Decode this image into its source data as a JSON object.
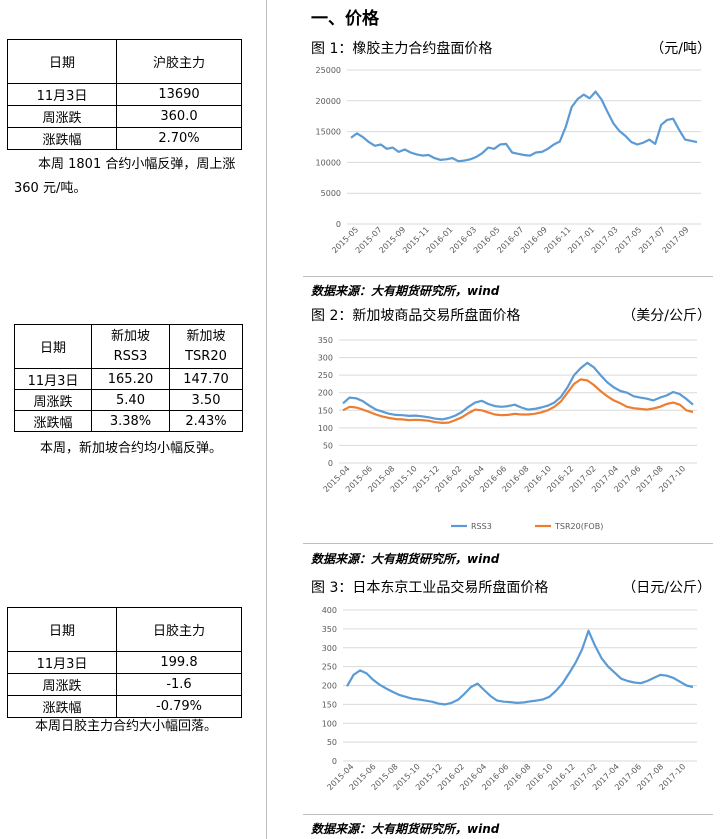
{
  "left": {
    "table1": {
      "rows": [
        [
          "日期",
          "沪胶主力"
        ],
        [
          "11月3日",
          "13690"
        ],
        [
          "周涨跌",
          "360.0"
        ],
        [
          "涨跌幅",
          "2.70%"
        ]
      ]
    },
    "note1": {
      "line1": "本周 1801 合约小幅反弹，周上涨",
      "line2": "360 元/吨。"
    },
    "table2": {
      "header": {
        "c0": "日期",
        "c1a": "新加坡",
        "c1b": "RSS3",
        "c2a": "新加坡",
        "c2b": "TSR20"
      },
      "rows": [
        [
          "11月3日",
          "165.20",
          "147.70"
        ],
        [
          "周涨跌",
          "5.40",
          "3.50"
        ],
        [
          "涨跌幅",
          "3.38%",
          "2.43%"
        ]
      ]
    },
    "note2": "本周，新加坡合约均小幅反弹。",
    "table3": {
      "rows": [
        [
          "日期",
          "日胶主力"
        ],
        [
          "11月3日",
          "199.8"
        ],
        [
          "周涨跌",
          "-1.6"
        ],
        [
          "涨跌幅",
          "-0.79%"
        ]
      ]
    },
    "note3": "本周日胶主力合约大小幅回落。"
  },
  "right": {
    "section_title": "一、价格",
    "source": "数据来源：大有期货研究所，wind",
    "fig1": {
      "title": "图 1：橡胶主力合约盘面价格",
      "unit": "（元/吨）"
    },
    "fig2": {
      "title": "图 2：新加坡商品交易所盘面价格",
      "unit": "（美分/公斤）"
    },
    "fig3": {
      "title": "图 3：日本东京工业品交易所盘面价格",
      "unit": "（日元/公斤）"
    }
  },
  "colors": {
    "series1": "#5b9bd5",
    "series2": "#ed7d31",
    "grid": "#d9d9d9"
  },
  "chart_data": [
    {
      "type": "line",
      "title": "",
      "ylim": [
        0,
        25000
      ],
      "yticks": [
        "0",
        "5000",
        "10000",
        "15000",
        "20000",
        "25000"
      ],
      "xticks": [
        "2015-05",
        "2015-07",
        "2015-09",
        "2015-11",
        "2016-01",
        "2016-03",
        "2016-05",
        "2016-07",
        "2016-09",
        "2016-11",
        "2017-01",
        "2017-03",
        "2017-05",
        "2017-07",
        "2017-09"
      ],
      "grid": "horizontal",
      "legend": "none",
      "series": [
        {
          "values": [
            14000,
            14700,
            14100,
            13300,
            12700,
            12900,
            12200,
            12400,
            11700,
            12100,
            11600,
            11300,
            11100,
            11200,
            10700,
            10400,
            10500,
            10700,
            10200,
            10300,
            10500,
            10900,
            11500,
            12400,
            12200,
            12900,
            13000,
            11600,
            11400,
            11200,
            11100,
            11600,
            11700,
            12200,
            12900,
            13400,
            15800,
            19000,
            20300,
            21000,
            20400,
            21500,
            20200,
            18200,
            16300,
            15100,
            14300,
            13300,
            12900,
            13200,
            13700,
            13000,
            16100,
            16900,
            17100,
            15300,
            13700,
            13500,
            13300
          ]
        }
      ]
    },
    {
      "type": "line",
      "title": "",
      "ylim": [
        0,
        350
      ],
      "yticks": [
        "0",
        "50",
        "100",
        "150",
        "200",
        "250",
        "300",
        "350"
      ],
      "xticks": [
        "2015-04",
        "2015-06",
        "2015-08",
        "2015-10",
        "2015-12",
        "2016-02",
        "2016-04",
        "2016-06",
        "2016-08",
        "2016-10",
        "2016-12",
        "2017-02",
        "2017-04",
        "2017-06",
        "2017-08",
        "2017-10"
      ],
      "grid": "horizontal",
      "legend": "bottom",
      "series": [
        {
          "name": "RSS3",
          "values": [
            170,
            186,
            184,
            176,
            163,
            152,
            146,
            140,
            137,
            136,
            134,
            135,
            133,
            130,
            126,
            124,
            128,
            135,
            145,
            160,
            172,
            177,
            168,
            162,
            160,
            162,
            166,
            158,
            152,
            154,
            158,
            163,
            172,
            188,
            215,
            250,
            270,
            285,
            272,
            250,
            230,
            215,
            205,
            200,
            190,
            186,
            183,
            178,
            186,
            192,
            202,
            196,
            182,
            166
          ]
        },
        {
          "name": "TSR20(FOB)",
          "values": [
            150,
            160,
            158,
            152,
            145,
            138,
            132,
            128,
            125,
            124,
            122,
            123,
            122,
            120,
            116,
            114,
            115,
            122,
            130,
            142,
            152,
            150,
            144,
            138,
            136,
            137,
            140,
            138,
            138,
            140,
            144,
            150,
            160,
            175,
            200,
            225,
            238,
            235,
            222,
            205,
            190,
            178,
            170,
            160,
            156,
            154,
            152,
            155,
            160,
            168,
            172,
            166,
            150,
            145
          ]
        }
      ]
    },
    {
      "type": "line",
      "title": "",
      "ylim": [
        0,
        400
      ],
      "yticks": [
        "0",
        "50",
        "100",
        "150",
        "200",
        "250",
        "300",
        "350",
        "400"
      ],
      "xticks": [
        "2015-04",
        "2015-06",
        "2015-08",
        "2015-10",
        "2015-12",
        "2016-02",
        "2016-04",
        "2016-06",
        "2016-08",
        "2016-10",
        "2016-12",
        "2017-02",
        "2017-04",
        "2017-06",
        "2017-08",
        "2017-10"
      ],
      "grid": "horizontal",
      "legend": "none",
      "series": [
        {
          "values": [
            198,
            228,
            240,
            232,
            215,
            202,
            192,
            183,
            175,
            170,
            165,
            163,
            160,
            157,
            152,
            150,
            154,
            162,
            178,
            196,
            205,
            188,
            172,
            160,
            157,
            156,
            154,
            155,
            158,
            160,
            163,
            170,
            186,
            205,
            232,
            260,
            295,
            345,
            305,
            272,
            250,
            234,
            218,
            212,
            208,
            206,
            212,
            220,
            228,
            226,
            220,
            210,
            200,
            196
          ]
        }
      ]
    }
  ]
}
